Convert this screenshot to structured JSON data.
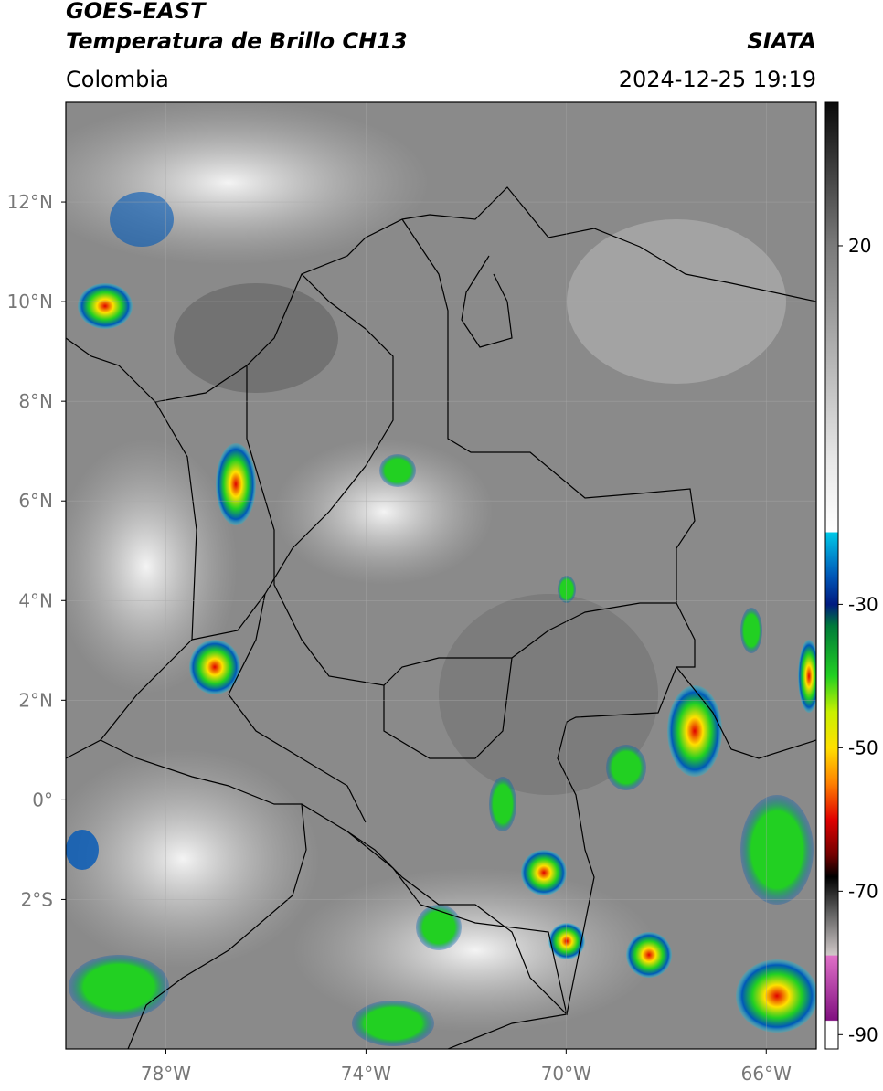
{
  "header": {
    "title": "GOES-EAST",
    "subtitle": "Temperatura de Brillo CH13",
    "source": "SIATA",
    "region": "Colombia",
    "datetime": "2024-12-25 19:19"
  },
  "map": {
    "xlim": [
      -80,
      -65
    ],
    "ylim": [
      -5,
      14
    ],
    "xticks": [
      {
        "value": -78,
        "label": "78°W"
      },
      {
        "value": -74,
        "label": "74°W"
      },
      {
        "value": -70,
        "label": "70°W"
      },
      {
        "value": -66,
        "label": "66°W"
      }
    ],
    "yticks": [
      {
        "value": 12,
        "label": "12°N"
      },
      {
        "value": 10,
        "label": "10°N"
      },
      {
        "value": 8,
        "label": "8°N"
      },
      {
        "value": 6,
        "label": "6°N"
      },
      {
        "value": 4,
        "label": "4°N"
      },
      {
        "value": 2,
        "label": "2°N"
      },
      {
        "value": 0,
        "label": "0°"
      },
      {
        "value": -2,
        "label": "2°S"
      }
    ],
    "grid": true
  },
  "colorbar": {
    "lim": [
      -92,
      40
    ],
    "ticks": [
      20,
      -30,
      -50,
      -70,
      -90
    ],
    "stops": [
      {
        "value": 40,
        "color": "#0a0a0a"
      },
      {
        "value": 20,
        "color": "#7a7a7a"
      },
      {
        "value": -10,
        "color": "#e8e8e8"
      },
      {
        "value": -19.9,
        "color": "#ffffff"
      },
      {
        "value": -20,
        "color": "#00c8e8"
      },
      {
        "value": -26,
        "color": "#0058b8"
      },
      {
        "value": -30,
        "color": "#001a80"
      },
      {
        "value": -33,
        "color": "#007a3a"
      },
      {
        "value": -40,
        "color": "#22d022"
      },
      {
        "value": -45,
        "color": "#c8f000"
      },
      {
        "value": -50,
        "color": "#ffe000"
      },
      {
        "value": -55,
        "color": "#ff8000"
      },
      {
        "value": -60,
        "color": "#e00000"
      },
      {
        "value": -65,
        "color": "#700000"
      },
      {
        "value": -68,
        "color": "#000000"
      },
      {
        "value": -73,
        "color": "#606060"
      },
      {
        "value": -78.9,
        "color": "#d0c8c8"
      },
      {
        "value": -79,
        "color": "#e070c8"
      },
      {
        "value": -88,
        "color": "#801080"
      },
      {
        "value": -88.1,
        "color": "#ffffff"
      },
      {
        "value": -92,
        "color": "#ffffff"
      }
    ]
  }
}
